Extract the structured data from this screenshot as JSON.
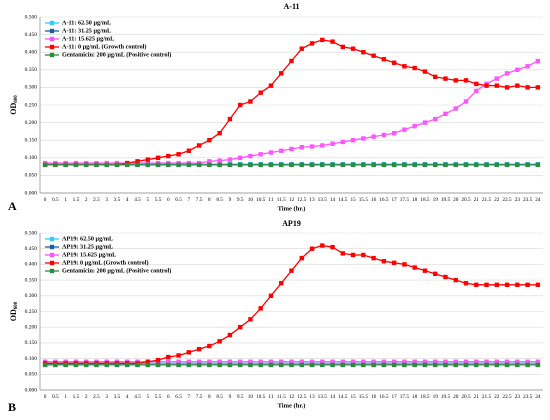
{
  "chart_data": [
    {
      "type": "line",
      "label": "A",
      "title": "A-11",
      "xlabel": "Time (hr.)",
      "ylabel": "OD",
      "ylabel_sub": "600",
      "categories": [
        "0",
        "0.5",
        "1",
        "1.5",
        "2",
        "2.5",
        "3",
        "3.5",
        "4",
        "4.5",
        "5",
        "5.5",
        "6",
        "6.5",
        "7",
        "7.5",
        "8",
        "8.5",
        "9",
        "9.5",
        "10",
        "10.5",
        "11",
        "11.5",
        "12",
        "12.5",
        "13",
        "13.5",
        "14",
        "14.5",
        "15",
        "15.5",
        "16",
        "16.5",
        "17",
        "17.5",
        "18",
        "18.5",
        "19",
        "19.5",
        "20",
        "20.5",
        "21",
        "21.5",
        "22",
        "22.5",
        "23",
        "23.5",
        "24"
      ],
      "ylim": [
        0,
        0.5
      ],
      "yticks": [
        {
          "value": 0,
          "label": "0.000"
        },
        {
          "value": 0.05,
          "label": "0.050"
        },
        {
          "value": 0.1,
          "label": "0.100"
        },
        {
          "value": 0.15,
          "label": "0.150"
        },
        {
          "value": 0.2,
          "label": "0.200"
        },
        {
          "value": 0.25,
          "label": "0.250"
        },
        {
          "value": 0.3,
          "label": "0.300"
        },
        {
          "value": 0.35,
          "label": "0.350"
        },
        {
          "value": 0.4,
          "label": "0.400"
        },
        {
          "value": 0.45,
          "label": "0.450"
        },
        {
          "value": 0.5,
          "label": "0.500"
        }
      ],
      "grid": true,
      "legend": "upper left",
      "series": [
        {
          "name": "A-11: 62.50 µg/mL",
          "color": "#33ccff",
          "values": [
            0.082,
            0.082,
            0.082,
            0.082,
            0.082,
            0.082,
            0.082,
            0.082,
            0.082,
            0.082,
            0.082,
            0.082,
            0.082,
            0.082,
            0.082,
            0.082,
            0.082,
            0.082,
            0.082,
            0.082,
            0.082,
            0.082,
            0.082,
            0.082,
            0.082,
            0.082,
            0.082,
            0.082,
            0.082,
            0.082,
            0.082,
            0.082,
            0.082,
            0.082,
            0.082,
            0.082,
            0.082,
            0.082,
            0.082,
            0.082,
            0.082,
            0.082,
            0.082,
            0.082,
            0.082,
            0.082,
            0.082,
            0.082,
            0.082
          ]
        },
        {
          "name": "A-11: 31.25 µg/mL",
          "color": "#1f5fa0",
          "values": [
            0.08,
            0.08,
            0.08,
            0.08,
            0.08,
            0.08,
            0.08,
            0.08,
            0.08,
            0.08,
            0.08,
            0.08,
            0.08,
            0.08,
            0.08,
            0.08,
            0.08,
            0.08,
            0.08,
            0.08,
            0.08,
            0.08,
            0.08,
            0.08,
            0.08,
            0.08,
            0.08,
            0.08,
            0.08,
            0.08,
            0.08,
            0.08,
            0.08,
            0.08,
            0.08,
            0.08,
            0.08,
            0.08,
            0.08,
            0.08,
            0.08,
            0.08,
            0.08,
            0.08,
            0.08,
            0.08,
            0.08,
            0.08,
            0.08
          ]
        },
        {
          "name": "A-11: 15.625 µg/mL",
          "color": "#ff55ff",
          "values": [
            0.085,
            0.085,
            0.085,
            0.085,
            0.085,
            0.085,
            0.085,
            0.085,
            0.085,
            0.085,
            0.085,
            0.085,
            0.085,
            0.085,
            0.085,
            0.085,
            0.09,
            0.092,
            0.095,
            0.1,
            0.105,
            0.11,
            0.115,
            0.12,
            0.125,
            0.13,
            0.132,
            0.135,
            0.14,
            0.145,
            0.15,
            0.155,
            0.16,
            0.165,
            0.17,
            0.18,
            0.19,
            0.2,
            0.21,
            0.225,
            0.24,
            0.26,
            0.29,
            0.31,
            0.325,
            0.34,
            0.35,
            0.36,
            0.375
          ]
        },
        {
          "name": "A-11: 0 µg/mL (Growth control)",
          "color": "#ff0000",
          "values": [
            0.08,
            0.08,
            0.08,
            0.08,
            0.08,
            0.08,
            0.08,
            0.08,
            0.085,
            0.09,
            0.095,
            0.1,
            0.105,
            0.11,
            0.12,
            0.135,
            0.15,
            0.17,
            0.21,
            0.25,
            0.26,
            0.285,
            0.305,
            0.34,
            0.375,
            0.41,
            0.425,
            0.435,
            0.43,
            0.415,
            0.41,
            0.4,
            0.39,
            0.38,
            0.37,
            0.36,
            0.355,
            0.345,
            0.33,
            0.325,
            0.32,
            0.32,
            0.31,
            0.305,
            0.305,
            0.3,
            0.305,
            0.3,
            0.3
          ]
        },
        {
          "name": "Gentamicin: 200 µg/mL (Positive control)",
          "color": "#2e8b3e",
          "values": [
            0.08,
            0.08,
            0.08,
            0.08,
            0.08,
            0.08,
            0.08,
            0.08,
            0.08,
            0.08,
            0.08,
            0.08,
            0.08,
            0.08,
            0.08,
            0.08,
            0.08,
            0.08,
            0.08,
            0.08,
            0.08,
            0.08,
            0.08,
            0.08,
            0.08,
            0.08,
            0.08,
            0.08,
            0.08,
            0.08,
            0.08,
            0.08,
            0.08,
            0.08,
            0.08,
            0.08,
            0.08,
            0.08,
            0.08,
            0.08,
            0.08,
            0.08,
            0.08,
            0.08,
            0.08,
            0.08,
            0.08,
            0.08,
            0.08
          ]
        }
      ]
    },
    {
      "type": "line",
      "label": "B",
      "title": "AP19",
      "xlabel": "Time (hr.)",
      "ylabel": "OD",
      "ylabel_sub": "600",
      "categories": [
        "0",
        "0.5",
        "1",
        "1.5",
        "2",
        "2.5",
        "3",
        "3.5",
        "4",
        "4.5",
        "5",
        "5.5",
        "6",
        "6.5",
        "7",
        "7.5",
        "8",
        "8.5",
        "9",
        "9.5",
        "10",
        "10.5",
        "11",
        "11.5",
        "12",
        "12.5",
        "13",
        "13.5",
        "14",
        "14.5",
        "15",
        "15.5",
        "16",
        "16.5",
        "17",
        "17.5",
        "18",
        "18.5",
        "19",
        "19.5",
        "20",
        "20.5",
        "21",
        "21.5",
        "22",
        "22.5",
        "23",
        "23.5",
        "24"
      ],
      "ylim": [
        0,
        0.5
      ],
      "yticks": [
        {
          "value": 0,
          "label": "0.000"
        },
        {
          "value": 0.05,
          "label": "0.050"
        },
        {
          "value": 0.1,
          "label": "0.100"
        },
        {
          "value": 0.15,
          "label": "0.150"
        },
        {
          "value": 0.2,
          "label": "0.200"
        },
        {
          "value": 0.25,
          "label": "0.250"
        },
        {
          "value": 0.3,
          "label": "0.300"
        },
        {
          "value": 0.35,
          "label": "0.350"
        },
        {
          "value": 0.4,
          "label": "0.400"
        },
        {
          "value": 0.45,
          "label": "0.450"
        },
        {
          "value": 0.5,
          "label": "0.500"
        }
      ],
      "grid": true,
      "legend": "upper left",
      "series": [
        {
          "name": "AP19: 62.50 µg/mL",
          "color": "#33ccff",
          "values": [
            0.085,
            0.085,
            0.085,
            0.085,
            0.085,
            0.085,
            0.085,
            0.085,
            0.085,
            0.085,
            0.085,
            0.085,
            0.085,
            0.085,
            0.085,
            0.085,
            0.085,
            0.085,
            0.085,
            0.085,
            0.085,
            0.085,
            0.085,
            0.085,
            0.085,
            0.085,
            0.085,
            0.085,
            0.085,
            0.085,
            0.085,
            0.085,
            0.085,
            0.085,
            0.085,
            0.085,
            0.085,
            0.085,
            0.085,
            0.085,
            0.085,
            0.085,
            0.085,
            0.085,
            0.085,
            0.085,
            0.085,
            0.085,
            0.085
          ]
        },
        {
          "name": "AP19: 31.25 µg/mL",
          "color": "#1f5fa0",
          "values": [
            0.08,
            0.08,
            0.08,
            0.08,
            0.08,
            0.08,
            0.08,
            0.08,
            0.08,
            0.08,
            0.08,
            0.08,
            0.08,
            0.08,
            0.08,
            0.08,
            0.08,
            0.08,
            0.08,
            0.08,
            0.08,
            0.08,
            0.08,
            0.08,
            0.08,
            0.08,
            0.08,
            0.08,
            0.08,
            0.08,
            0.08,
            0.08,
            0.08,
            0.08,
            0.08,
            0.08,
            0.08,
            0.08,
            0.08,
            0.08,
            0.08,
            0.08,
            0.08,
            0.08,
            0.08,
            0.08,
            0.08,
            0.08,
            0.08
          ]
        },
        {
          "name": "AP19: 15.625 µg/mL",
          "color": "#ff55ff",
          "values": [
            0.09,
            0.09,
            0.09,
            0.09,
            0.09,
            0.09,
            0.09,
            0.09,
            0.09,
            0.09,
            0.09,
            0.09,
            0.09,
            0.09,
            0.09,
            0.09,
            0.09,
            0.09,
            0.09,
            0.09,
            0.09,
            0.09,
            0.09,
            0.09,
            0.09,
            0.09,
            0.09,
            0.09,
            0.09,
            0.09,
            0.09,
            0.09,
            0.09,
            0.09,
            0.09,
            0.09,
            0.09,
            0.09,
            0.09,
            0.09,
            0.09,
            0.09,
            0.09,
            0.09,
            0.09,
            0.09,
            0.09,
            0.09,
            0.09
          ]
        },
        {
          "name": "AP19: 0 µg/mL (Growth control)",
          "color": "#ff0000",
          "values": [
            0.085,
            0.085,
            0.085,
            0.085,
            0.085,
            0.085,
            0.085,
            0.085,
            0.085,
            0.085,
            0.09,
            0.095,
            0.105,
            0.11,
            0.12,
            0.13,
            0.14,
            0.155,
            0.175,
            0.2,
            0.225,
            0.26,
            0.3,
            0.34,
            0.38,
            0.42,
            0.45,
            0.46,
            0.455,
            0.435,
            0.43,
            0.43,
            0.42,
            0.41,
            0.405,
            0.4,
            0.39,
            0.38,
            0.37,
            0.36,
            0.35,
            0.34,
            0.335,
            0.335,
            0.335,
            0.335,
            0.335,
            0.335,
            0.335
          ]
        },
        {
          "name": "Gentamicin: 200 µg/mL (Positive control)",
          "color": "#2e8b3e",
          "values": [
            0.08,
            0.08,
            0.08,
            0.08,
            0.08,
            0.08,
            0.08,
            0.08,
            0.08,
            0.08,
            0.08,
            0.08,
            0.08,
            0.08,
            0.08,
            0.08,
            0.08,
            0.08,
            0.08,
            0.08,
            0.08,
            0.08,
            0.08,
            0.08,
            0.08,
            0.08,
            0.08,
            0.08,
            0.08,
            0.08,
            0.08,
            0.08,
            0.08,
            0.08,
            0.08,
            0.08,
            0.08,
            0.08,
            0.08,
            0.08,
            0.08,
            0.08,
            0.08,
            0.08,
            0.08,
            0.08,
            0.08,
            0.08,
            0.08
          ]
        }
      ]
    }
  ]
}
